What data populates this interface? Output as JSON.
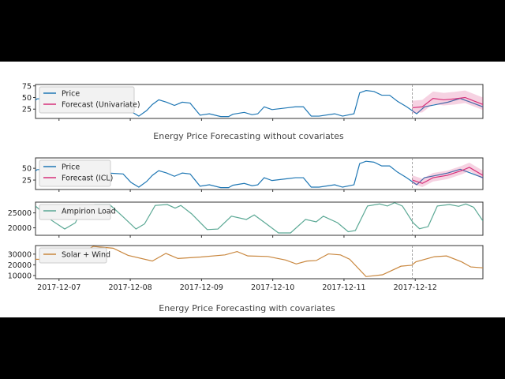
{
  "chart_data": [
    {
      "type": "line",
      "title": "Energy Price Forecasting without covariates",
      "x_unit": "days since 2017-12-07",
      "xlim": [
        -0.33,
        5.95
      ],
      "ylim": [
        5,
        78
      ],
      "yticks": [
        25,
        50,
        75
      ],
      "forecast_start": 4.96,
      "legend": [
        "Price",
        "Forecast (Univariate)"
      ],
      "legend_position": "top-left",
      "series": [
        {
          "name": "Price",
          "color": "#1f77b4",
          "x": [
            -0.36,
            -0.31,
            -0.2,
            0.02,
            0.24,
            0.46,
            0.68,
            0.9,
            1.01,
            1.12,
            1.23,
            1.31,
            1.4,
            1.51,
            1.62,
            1.73,
            1.84,
            1.91,
            1.98,
            2.11,
            2.27,
            2.38,
            2.44,
            2.6,
            2.71,
            2.79,
            2.88,
            2.99,
            3.21,
            3.32,
            3.43,
            3.54,
            3.65,
            3.87,
            3.98,
            4.14,
            4.22,
            4.31,
            4.42,
            4.53,
            4.64,
            4.75,
            4.88,
            5.02,
            5.13,
            5.3,
            5.46,
            5.63,
            5.74,
            5.95
          ],
          "y": [
            40,
            47,
            48,
            50,
            45,
            42,
            40,
            38,
            20,
            10,
            22,
            35,
            45,
            40,
            33,
            40,
            38,
            25,
            12,
            15,
            9,
            9,
            14,
            18,
            13,
            15,
            30,
            24,
            28,
            30,
            30,
            10,
            10,
            15,
            10,
            15,
            60,
            65,
            63,
            55,
            55,
            42,
            30,
            15,
            30,
            35,
            40,
            48,
            42,
            30
          ]
        },
        {
          "name": "Forecast (Univariate)",
          "color": "#d6317a",
          "x": [
            4.96,
            5.1,
            5.25,
            5.4,
            5.55,
            5.7,
            5.95
          ],
          "y": [
            28,
            30,
            48,
            45,
            47,
            50,
            35
          ],
          "band": 15
        }
      ]
    },
    {
      "type": "line",
      "title": "Energy Price Forecasting with covariates",
      "xlim": [
        -0.33,
        5.95
      ],
      "xticks": [
        "2017-12-07",
        "2017-12-08",
        "2017-12-09",
        "2017-12-10",
        "2017-12-11",
        "2017-12-12"
      ],
      "forecast_start": 4.96,
      "panels": [
        {
          "ylim": [
            5,
            72
          ],
          "yticks": [
            25,
            50
          ],
          "legend": [
            "Price",
            "Forecast (ICL)"
          ],
          "series": [
            {
              "name": "Price",
              "color": "#1f77b4",
              "ref": "price"
            },
            {
              "name": "Forecast (ICL)",
              "color": "#d6317a",
              "x": [
                4.96,
                5.1,
                5.25,
                5.45,
                5.65,
                5.76,
                5.95
              ],
              "y": [
                25,
                18,
                30,
                35,
                45,
                52,
                35
              ],
              "band": 10
            }
          ]
        },
        {
          "ylim": [
            17500,
            28600
          ],
          "yticks": [
            20000,
            25000
          ],
          "legend": [
            "Ampirion Load"
          ],
          "series": [
            {
              "name": "Ampirion Load",
              "color": "#5aa894",
              "x": [
                -0.33,
                -0.11,
                0.08,
                0.23,
                0.33,
                0.5,
                0.71,
                0.89,
                1.08,
                1.2,
                1.35,
                1.52,
                1.63,
                1.71,
                1.86,
                2.08,
                2.23,
                2.42,
                2.63,
                2.74,
                2.89,
                3.08,
                3.25,
                3.46,
                3.61,
                3.71,
                3.91,
                4.06,
                4.16,
                4.33,
                4.5,
                4.61,
                4.71,
                4.82,
                4.97,
                5.06,
                5.18,
                5.31,
                5.48,
                5.61,
                5.71,
                5.82,
                5.95
              ],
              "y": [
                27300,
                22600,
                19600,
                21700,
                26900,
                27800,
                27800,
                23900,
                19600,
                21300,
                27500,
                27800,
                26600,
                27500,
                24700,
                19400,
                19600,
                23900,
                22800,
                24300,
                21700,
                18300,
                18300,
                22800,
                22000,
                23900,
                21700,
                18700,
                19100,
                27300,
                28000,
                27300,
                28400,
                27300,
                21700,
                19700,
                20400,
                27300,
                27800,
                27200,
                28000,
                26900,
                22300
              ]
            }
          ]
        },
        {
          "ylim": [
            7000,
            38000
          ],
          "yticks": [
            10000,
            20000,
            30000
          ],
          "legend": [
            "Solar + Wind"
          ],
          "series": [
            {
              "name": "Solar + Wind",
              "color": "#c9873e",
              "x": [
                -0.33,
                0.12,
                0.48,
                0.76,
                0.97,
                1.31,
                1.5,
                1.67,
                1.99,
                2.33,
                2.5,
                2.65,
                2.93,
                3.18,
                3.33,
                3.48,
                3.61,
                3.78,
                3.95,
                4.08,
                4.31,
                4.54,
                4.8,
                4.95,
                5.01,
                5.27,
                5.44,
                5.65,
                5.78,
                5.95
              ],
              "y": [
                25200,
                24500,
                37200,
                35500,
                28800,
                23500,
                30700,
                25900,
                27300,
                29300,
                32400,
                28300,
                27800,
                24500,
                20800,
                23500,
                24000,
                30200,
                29300,
                25200,
                9000,
                10700,
                18700,
                19600,
                22800,
                27600,
                28300,
                22800,
                18000,
                17200
              ]
            }
          ]
        }
      ]
    }
  ]
}
